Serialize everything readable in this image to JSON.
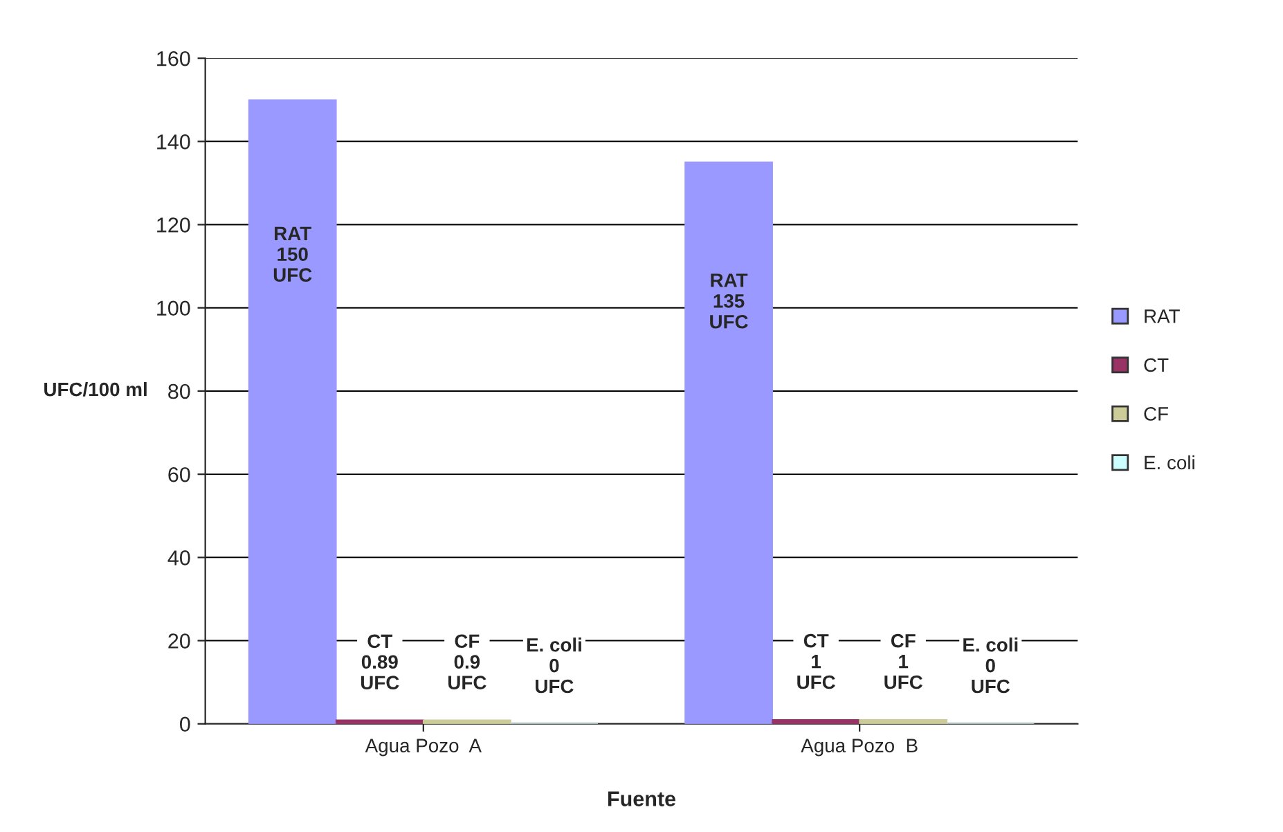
{
  "chart_data": {
    "type": "bar",
    "xlabel": "Fuente",
    "ylabel": "UFC/100 ml",
    "categories": [
      "Agua Pozo  A",
      "Agua Pozo  B"
    ],
    "series": [
      {
        "name": "RAT",
        "color": "#9999ff",
        "values": [
          150,
          135
        ],
        "value_labels": [
          "RAT\n150\nUFC",
          "RAT\n135\nUFC"
        ]
      },
      {
        "name": "CT",
        "color": "#993366",
        "values": [
          0.89,
          1
        ],
        "value_labels": [
          "CT\n0.89\nUFC",
          "CT\n1\nUFC"
        ]
      },
      {
        "name": "CF",
        "color": "#cccc99",
        "values": [
          0.9,
          1
        ],
        "value_labels": [
          "CF\n0.9\nUFC",
          "CF\n1\nUFC"
        ]
      },
      {
        "name": "E. coli",
        "color": "#ccffff",
        "values": [
          0,
          0
        ],
        "value_labels": [
          "E. coli\n0\nUFC",
          "E. coli\n0\nUFC"
        ]
      }
    ],
    "ylim": [
      0,
      160
    ],
    "yticks": [
      0,
      20,
      40,
      60,
      80,
      100,
      120,
      140,
      160
    ],
    "grid": "y",
    "legend": "right"
  }
}
